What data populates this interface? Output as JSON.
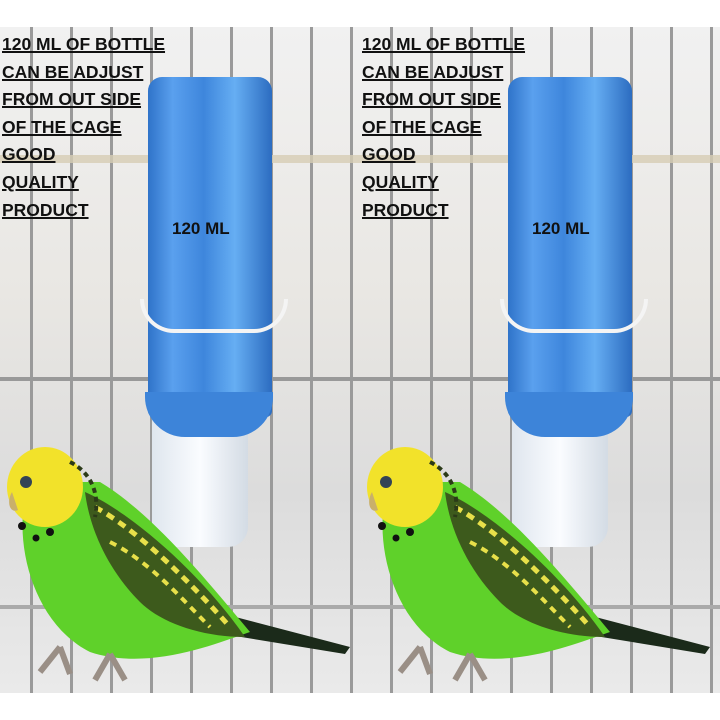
{
  "panels": [
    {
      "lines": [
        "120 ML OF BOTTLE",
        "CAN BE ADJUST",
        "FROM OUT SIDE",
        "OF THE CAGE",
        "GOOD",
        "QUALITY",
        "PRODUCT"
      ],
      "bottle_label": "120  ML"
    },
    {
      "lines": [
        "120 ML OF BOTTLE",
        "CAN BE ADJUST",
        "FROM OUT SIDE",
        "OF THE CAGE",
        "GOOD",
        "QUALITY",
        "PRODUCT"
      ],
      "bottle_label": "120  ML"
    }
  ],
  "colors": {
    "bottle": "#3e86dc",
    "parrot_body": "#5fd12a",
    "parrot_head": "#f2e22a"
  }
}
